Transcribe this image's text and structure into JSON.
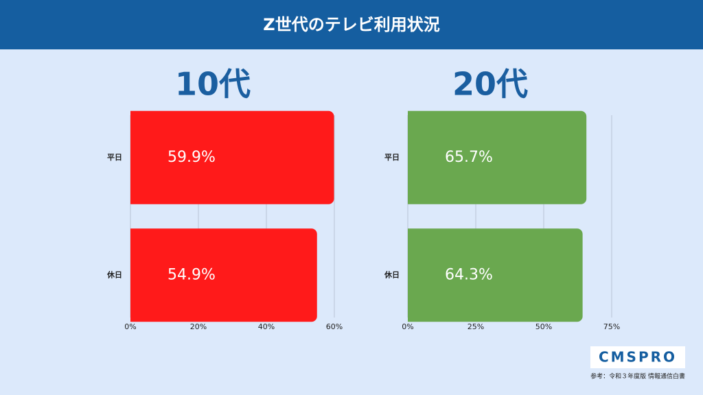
{
  "header": {
    "title": "Z世代のテレビ利用状況"
  },
  "chart_data": [
    {
      "type": "hbar",
      "title": "10代",
      "categories": [
        "平日",
        "休日"
      ],
      "values": [
        59.9,
        54.9
      ],
      "value_labels": [
        "59.9%",
        "54.9%"
      ],
      "color": "#ff1a1a",
      "xlim": [
        0,
        60
      ],
      "xticks": [
        {
          "value": 0,
          "label": "0%"
        },
        {
          "value": 20,
          "label": "20%"
        },
        {
          "value": 40,
          "label": "40%"
        },
        {
          "value": 60,
          "label": "60%"
        }
      ],
      "grid": true
    },
    {
      "type": "hbar",
      "title": "20代",
      "categories": [
        "平日",
        "休日"
      ],
      "values": [
        65.7,
        64.3
      ],
      "value_labels": [
        "65.7%",
        "64.3%"
      ],
      "color": "#6aa84f",
      "xlim": [
        0,
        75
      ],
      "xticks": [
        {
          "value": 0,
          "label": "0%"
        },
        {
          "value": 25,
          "label": "25%"
        },
        {
          "value": 50,
          "label": "50%"
        },
        {
          "value": 75,
          "label": "75%"
        }
      ],
      "grid": true
    }
  ],
  "footer": {
    "logo": "CMSPRO",
    "source": "参考：令和３年度版 情報通信白書"
  }
}
